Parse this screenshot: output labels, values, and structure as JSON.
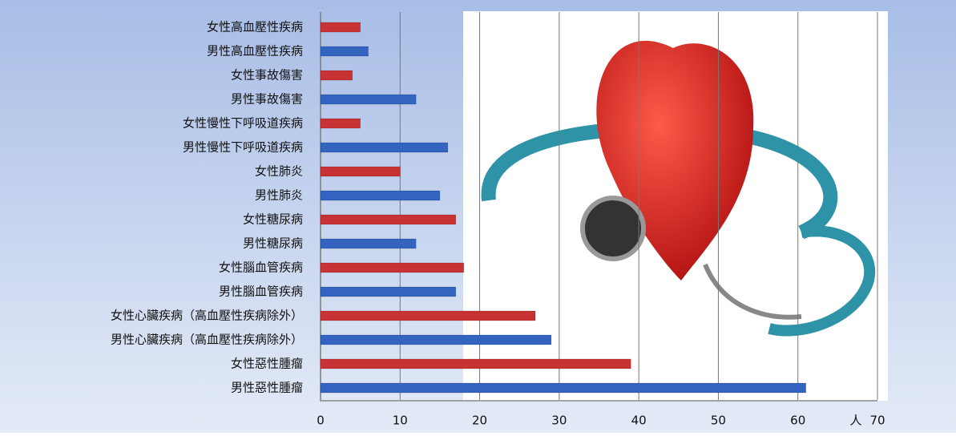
{
  "chart_data": {
    "type": "bar",
    "orientation": "horizontal",
    "x_label": "人",
    "categories": [
      "女性高血壓性疾病",
      "男性高血壓性疾病",
      "女性事故傷害",
      "男性事故傷害",
      "女性慢性下呼吸道疾病",
      "男性慢性下呼吸道疾病",
      "女性肺炎",
      "男性肺炎",
      "女性糖尿病",
      "男性糖尿病",
      "女性腦血管疾病",
      "男性腦血管疾病",
      "女性心臟疾病（高血壓性疾病除外）",
      "男性心臟疾病（高血壓性疾病除外）",
      "女性惡性腫瘤",
      "男性惡性腫瘤"
    ],
    "values": [
      5,
      6,
      4,
      12,
      5,
      16,
      10,
      15,
      17,
      12,
      18,
      17,
      27,
      29,
      39,
      61
    ],
    "colors": [
      "#c83232",
      "#3264c0",
      "#c83232",
      "#3264c0",
      "#c83232",
      "#3264c0",
      "#c83232",
      "#3264c0",
      "#c83232",
      "#3264c0",
      "#c83232",
      "#3264c0",
      "#c83232",
      "#3264c0",
      "#c83232",
      "#3264c0"
    ],
    "xlim": [
      0,
      70
    ],
    "xticks": [
      0,
      10,
      20,
      30,
      40,
      50,
      60,
      70
    ],
    "grid": true
  }
}
